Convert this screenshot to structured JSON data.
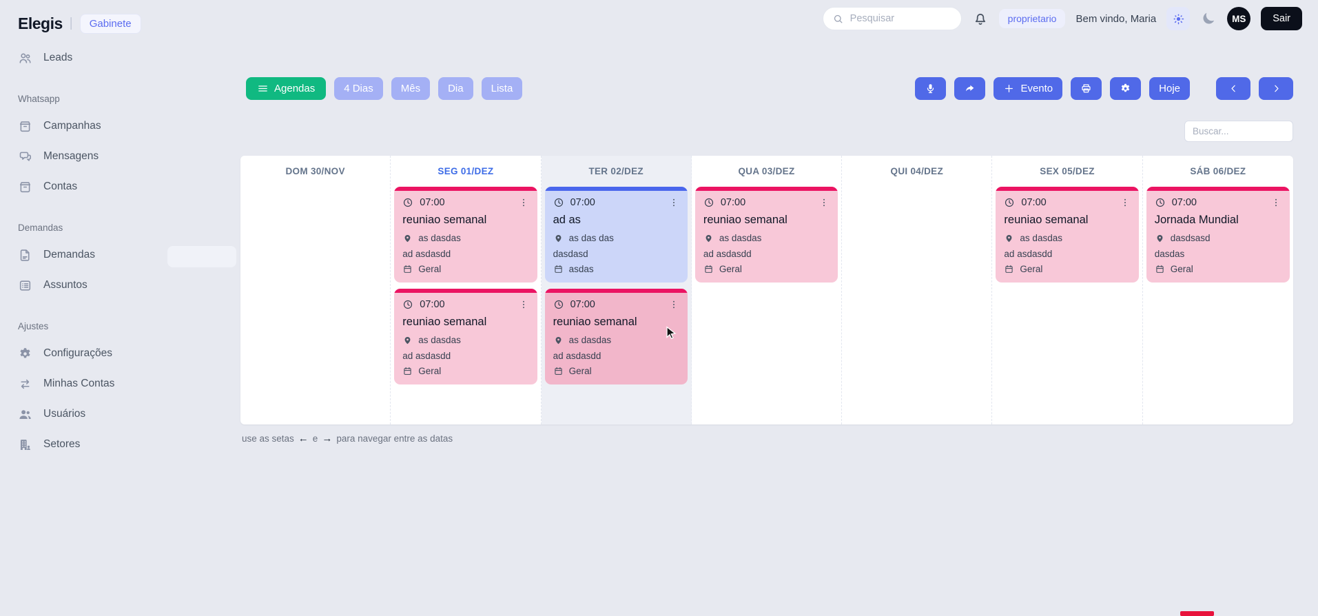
{
  "app": {
    "brand": "Elegis",
    "divider": "|",
    "workspace_badge": "Gabinete"
  },
  "header": {
    "search_placeholder": "Pesquisar",
    "role_badge": "proprietario",
    "welcome_text": "Bem vindo, Maria",
    "avatar_initials": "MS",
    "logout_label": "Sair"
  },
  "sidebar": {
    "sections": [
      {
        "title": "",
        "items": [
          {
            "label": "Leads",
            "icon": "users-outline"
          }
        ]
      },
      {
        "title": "Whatsapp",
        "items": [
          {
            "label": "Campanhas",
            "icon": "archive"
          },
          {
            "label": "Mensagens",
            "icon": "chat"
          },
          {
            "label": "Contas",
            "icon": "archive"
          }
        ]
      },
      {
        "title": "Demandas",
        "items": [
          {
            "label": "Demandas",
            "icon": "document"
          },
          {
            "label": "Assuntos",
            "icon": "list"
          }
        ]
      },
      {
        "title": "Ajustes",
        "items": [
          {
            "label": "Configurações",
            "icon": "gear"
          },
          {
            "label": "Minhas Contas",
            "icon": "swap"
          },
          {
            "label": "Usuários",
            "icon": "users-filled"
          },
          {
            "label": "Setores",
            "icon": "building"
          }
        ]
      }
    ]
  },
  "toolbar": {
    "views": [
      {
        "label": "Agendas",
        "active": true,
        "icon": "hamburger"
      },
      {
        "label": "4 Dias",
        "active": false
      },
      {
        "label": "Mês",
        "active": false
      },
      {
        "label": "Dia",
        "active": false
      },
      {
        "label": "Lista",
        "active": false
      }
    ],
    "event_button_label": "Evento",
    "today_label": "Hoje"
  },
  "filter_search_placeholder": "Buscar...",
  "calendar": {
    "days": [
      {
        "label": "DOM 30/NOV",
        "accent": false,
        "highlight": false,
        "events": []
      },
      {
        "label": "SEG 01/DEZ",
        "accent": true,
        "highlight": false,
        "events": [
          {
            "time": "07:00",
            "title": "reuniao semanal",
            "location": "as dasdas",
            "description": "ad asdasdd",
            "agenda": "Geral",
            "theme": "pink",
            "hovered": false
          },
          {
            "time": "07:00",
            "title": "reuniao semanal",
            "location": "as dasdas",
            "description": "ad asdasdd",
            "agenda": "Geral",
            "theme": "pink",
            "hovered": false
          }
        ]
      },
      {
        "label": "TER 02/DEZ",
        "accent": false,
        "highlight": true,
        "events": [
          {
            "time": "07:00",
            "title": "ad as",
            "location": "as das das",
            "description": "dasdasd",
            "agenda": "asdas",
            "theme": "blue",
            "hovered": false
          },
          {
            "time": "07:00",
            "title": "reuniao semanal",
            "location": "as dasdas",
            "description": "ad asdasdd",
            "agenda": "Geral",
            "theme": "pink",
            "hovered": true
          }
        ]
      },
      {
        "label": "QUA 03/DEZ",
        "accent": false,
        "highlight": false,
        "events": [
          {
            "time": "07:00",
            "title": "reuniao semanal",
            "location": "as dasdas",
            "description": "ad asdasdd",
            "agenda": "Geral",
            "theme": "pink",
            "hovered": false
          }
        ]
      },
      {
        "label": "QUI 04/DEZ",
        "accent": false,
        "highlight": false,
        "events": []
      },
      {
        "label": "SEX 05/DEZ",
        "accent": false,
        "highlight": false,
        "events": [
          {
            "time": "07:00",
            "title": "reuniao semanal",
            "location": "as dasdas",
            "description": "ad asdasdd",
            "agenda": "Geral",
            "theme": "pink",
            "hovered": false
          }
        ]
      },
      {
        "label": "SÁB 06/DEZ",
        "accent": false,
        "highlight": false,
        "events": [
          {
            "time": "07:00",
            "title": "Jornada Mundial",
            "location": "dasdsasd",
            "description": "dasdas",
            "agenda": "Geral",
            "theme": "pink",
            "hovered": false
          }
        ]
      }
    ]
  },
  "hint": {
    "prefix": "use as setas",
    "arrow_left": "←",
    "conjunction": "e",
    "arrow_right": "→",
    "suffix": "para navegar entre as datas"
  },
  "colors": {
    "page_bg": "#e7e9f0",
    "accent_green": "#10b981",
    "view_inactive": "#a4b0f5",
    "action_blue": "#5069e8",
    "pink_event_bg": "#f8c8d8",
    "pink_event_bar": "#eb1462",
    "blue_event_bg": "#ccd6f9",
    "blue_event_bar": "#4a66ec",
    "day_accent": "#3d6ce7",
    "highlight_column_bg": "#edeff5"
  }
}
